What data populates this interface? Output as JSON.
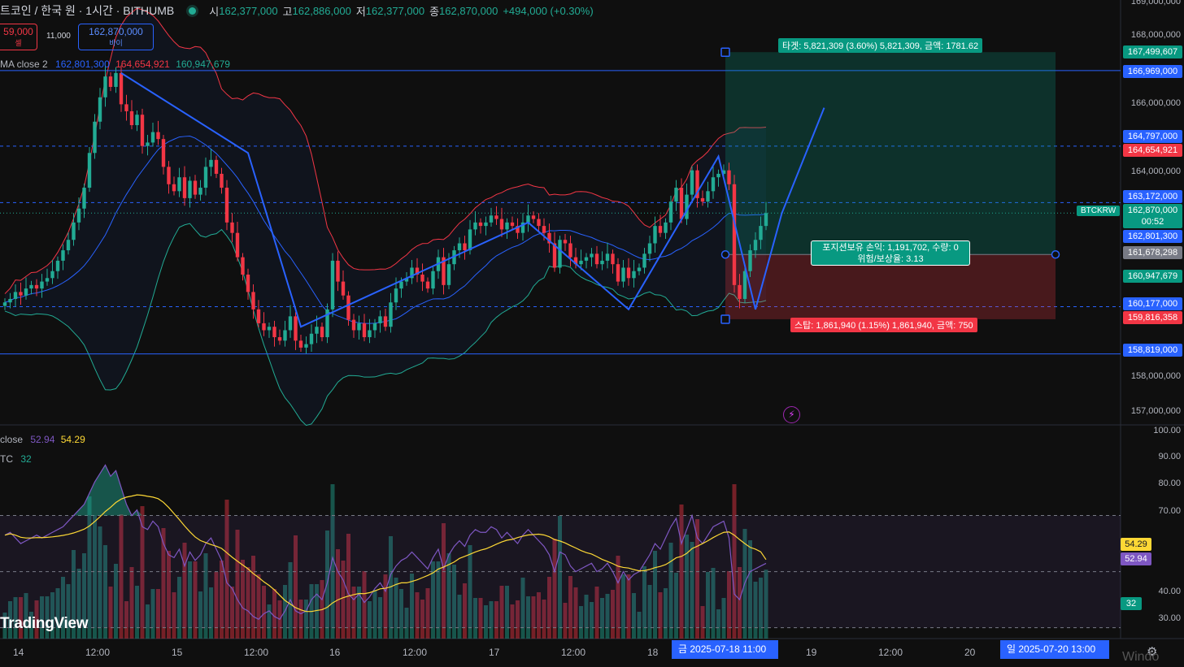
{
  "header": {
    "symbol": "트코인 / 한국 원 · 1시간 · BITHUMB",
    "open_label": "시",
    "open": "162,377,000",
    "high_label": "고",
    "high": "162,886,000",
    "low_label": "저",
    "low": "162,377,000",
    "close_label": "종",
    "close": "162,870,000",
    "change": "+494,000 (+0.30%)"
  },
  "order": {
    "sell_price": "59,000",
    "sell_label": "셀",
    "spread": "11,000",
    "buy_price": "162,870,000",
    "buy_label": "바이"
  },
  "bb_legend": {
    "name": "MA close 2",
    "basis": "162,801,300",
    "upper": "164,654,921",
    "lower": "160,947,679"
  },
  "rsi_legend": {
    "name": "close",
    "rsi": "52.94",
    "ma": "54.29"
  },
  "vol_legend": {
    "name": "TC",
    "value": "32"
  },
  "target_label": "타겟: 5,821,309 (3.60%) 5,821,309, 금액: 1781.62",
  "stop_label": "스탑: 1,861,940 (1.15%) 1,861,940, 금액: 750",
  "position_label": {
    "line1": "포지션보유 손익: 1,191,702, 수량: 0",
    "line2": "위험/보상율: 3.13"
  },
  "symbol_tag": "BTCKRW",
  "price_axis": [
    "169,000,000",
    "168,000,000",
    "166,000,000",
    "164,000,000",
    "158,000,000",
    "157,000,000"
  ],
  "price_tags": {
    "t1": "167,499,607",
    "t2": "166,969,000",
    "t3": "164,797,000",
    "t4": "164,654,921",
    "t5": "163,172,000",
    "t6": "162,870,000",
    "t6b": "00:52",
    "t7": "162,801,300",
    "t8": "161,678,298",
    "t9": "160,947,679",
    "t10": "160,177,000",
    "t11": "159,816,358",
    "t12": "158,819,000"
  },
  "rsi_axis": [
    "100.00",
    "90.00",
    "80.00",
    "70.00",
    "40.00",
    "30.00"
  ],
  "rsi_tags": {
    "ma": "54.29",
    "rsi": "52.94",
    "vol": "32"
  },
  "time_axis": [
    "14",
    "12:00",
    "15",
    "12:00",
    "16",
    "12:00",
    "17",
    "12:00",
    "18",
    "19",
    "12:00",
    "20"
  ],
  "time_highlight_1": "금 2025-07-18   11:00",
  "time_highlight_2": "일 2025-07-20   13:00",
  "logo": "TradingView",
  "watermark": "Windo",
  "colors": {
    "up": "#22ab94",
    "down": "#f23645",
    "accent": "#2962ff",
    "rsi": "#7e57c2",
    "rsi_ma": "#fdd835"
  },
  "chart_data": {
    "type": "candlestick",
    "interval": "1h",
    "price_range": [
      156800000,
      169000000
    ],
    "closes": [
      160.3,
      160.4,
      160.6,
      160.5,
      160.7,
      160.8,
      160.7,
      160.9,
      161.0,
      161.2,
      161.5,
      161.8,
      162.1,
      162.6,
      163.0,
      163.6,
      164.6,
      165.5,
      166.2,
      166.8,
      166.5,
      166.9,
      166.0,
      165.8,
      165.4,
      165.7,
      164.8,
      164.9,
      165.2,
      165.0,
      164.2,
      163.7,
      163.5,
      163.9,
      163.3,
      163.8,
      163.4,
      163.6,
      164.2,
      164.4,
      164.0,
      163.6,
      162.6,
      162.3,
      161.6,
      161.1,
      160.6,
      160.1,
      159.7,
      159.5,
      159.6,
      159.3,
      159.2,
      159.5,
      159.9,
      159.2,
      159.0,
      159.1,
      159.4,
      159.6,
      159.3,
      160.1,
      161.5,
      160.9,
      160.5,
      159.8,
      159.5,
      159.7,
      159.3,
      159.5,
      159.7,
      159.9,
      159.6,
      160.3,
      160.7,
      160.9,
      161.0,
      161.3,
      161.1,
      160.9,
      160.7,
      161.2,
      161.6,
      160.8,
      161.4,
      161.8,
      162.0,
      161.8,
      162.4,
      162.6,
      162.5,
      162.6,
      162.8,
      162.7,
      162.4,
      162.6,
      162.5,
      162.3,
      162.6,
      162.8,
      162.7,
      162.5,
      162.3,
      162.0,
      161.3,
      162.1,
      162.0,
      161.6,
      161.4,
      161.5,
      161.6,
      161.7,
      161.4,
      161.5,
      161.7,
      161.4,
      160.9,
      161.3,
      161.0,
      161.2,
      161.3,
      161.7,
      162.0,
      162.5,
      162.3,
      162.6,
      163.2,
      163.6,
      162.7,
      163.4,
      164.1,
      163.3,
      163.2,
      163.5,
      163.9,
      164.0,
      164.1,
      163.7,
      160.8,
      160.4,
      161.2,
      161.8,
      162.1,
      162.5,
      162.87
    ],
    "rsi": [
      63,
      64,
      62,
      60,
      61,
      62,
      63,
      62,
      63,
      64,
      65,
      66,
      68,
      70,
      72,
      74,
      78,
      82,
      85,
      88,
      84,
      86,
      80,
      74,
      70,
      72,
      66,
      65,
      68,
      66,
      60,
      56,
      55,
      58,
      52,
      57,
      54,
      56,
      60,
      62,
      58,
      54,
      46,
      44,
      40,
      37,
      36,
      34,
      33,
      35,
      36,
      34,
      33,
      36,
      40,
      36,
      35,
      36,
      40,
      42,
      40,
      46,
      55,
      50,
      47,
      42,
      40,
      42,
      39,
      41,
      44,
      46,
      43,
      49,
      52,
      54,
      55,
      57,
      55,
      53,
      51,
      55,
      58,
      51,
      56,
      59,
      61,
      59,
      63,
      65,
      64,
      64,
      66,
      65,
      62,
      64,
      62,
      60,
      63,
      65,
      63,
      61,
      59,
      56,
      50,
      57,
      56,
      52,
      50,
      51,
      52,
      53,
      50,
      51,
      53,
      50,
      46,
      50,
      47,
      49,
      50,
      53,
      56,
      60,
      58,
      62,
      66,
      69,
      60,
      65,
      70,
      62,
      60,
      63,
      66,
      67,
      68,
      62,
      42,
      40,
      46,
      50,
      51,
      52,
      52.94
    ],
    "rsi_ma_last": 54.29,
    "rsi_levels": [
      30,
      50,
      70
    ],
    "rsi_range": [
      27,
      100
    ],
    "volume_last": 32,
    "bollinger_last": {
      "basis": 162801300,
      "upper": 164654921,
      "lower": 160947679
    },
    "horizontal_levels": [
      166969000,
      164797000,
      163172000,
      160177000,
      158819000
    ],
    "position": {
      "entry": 161678298,
      "target": 167499607,
      "stop": 159816358
    }
  }
}
